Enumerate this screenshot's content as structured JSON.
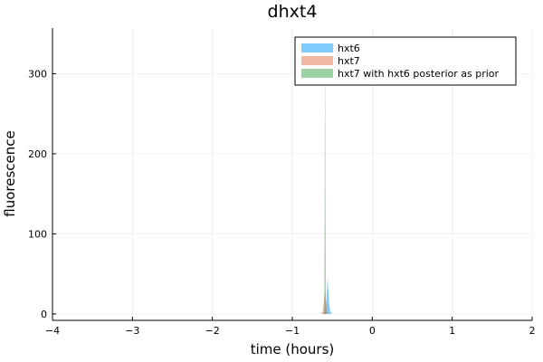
{
  "chart_data": {
    "type": "area",
    "title": "dhxt4",
    "xlabel": "time (hours)",
    "ylabel": "fluorescence",
    "xlim": [
      -4,
      2
    ],
    "ylim": [
      -8,
      357
    ],
    "xticks": [
      -4,
      -3,
      -2,
      -1,
      0,
      1,
      2
    ],
    "yticks": [
      0,
      100,
      200,
      300
    ],
    "grid": true,
    "legend_position": "top-right",
    "series": [
      {
        "name": "hxt6",
        "color": "#009af9",
        "opacity": 0.5,
        "x": [
          -0.62,
          -0.6,
          -0.58,
          -0.57,
          -0.56,
          -0.55,
          -0.54,
          -0.53,
          -0.52,
          -0.5
        ],
        "y": [
          0,
          2,
          8,
          25,
          45,
          30,
          15,
          6,
          2,
          0
        ]
      },
      {
        "name": "hxt7",
        "color": "#e26f46",
        "opacity": 0.5,
        "x": [
          -0.64,
          -0.62,
          -0.61,
          -0.6,
          -0.59,
          -0.58,
          -0.57,
          -0.56,
          -0.55
        ],
        "y": [
          0,
          3,
          12,
          22,
          28,
          18,
          7,
          2,
          0
        ]
      },
      {
        "name": "hxt7 with hxt6 posterior as prior",
        "color": "#3da44d",
        "opacity": 0.5,
        "x": [
          -0.6,
          -0.595,
          -0.59,
          -0.585,
          -0.58
        ],
        "y": [
          0,
          150,
          355,
          150,
          0
        ]
      }
    ]
  }
}
